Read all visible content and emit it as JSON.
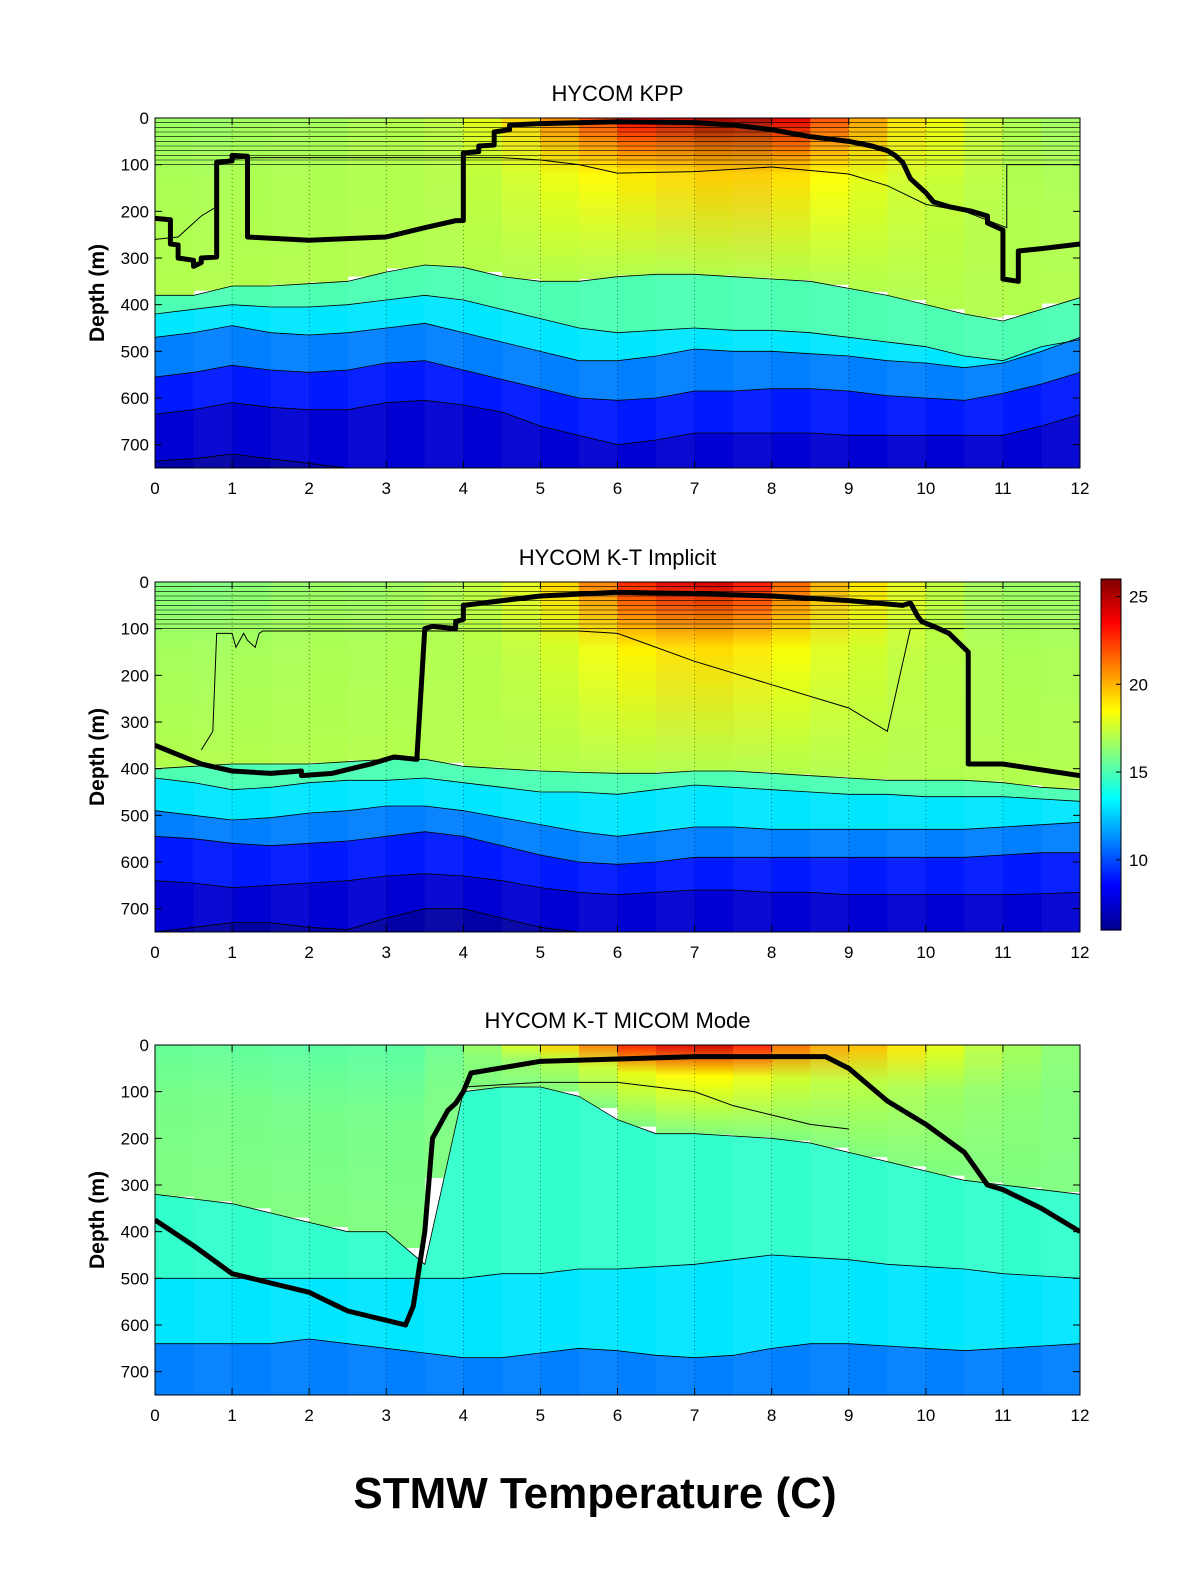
{
  "figure": {
    "xlabel": "STMW Temperature (C)"
  },
  "colorbar": {
    "ticks": [
      10,
      15,
      20,
      25
    ],
    "range": [
      6,
      26
    ],
    "colormap": [
      "#00008f",
      "#0000ff",
      "#0080ff",
      "#00ffff",
      "#80ff80",
      "#ffff00",
      "#ff8000",
      "#ff0000",
      "#800000"
    ]
  },
  "chart_data": [
    {
      "type": "heatmap",
      "title": "HYCOM KPP",
      "xlabel": "",
      "ylabel": "Depth (m)",
      "xlim": [
        0,
        12
      ],
      "ylim": [
        750,
        0
      ],
      "xticks": [
        0,
        1,
        2,
        3,
        4,
        5,
        6,
        7,
        8,
        9,
        10,
        11,
        12
      ],
      "yticks": [
        0,
        100,
        200,
        300,
        400,
        500,
        600,
        700
      ],
      "x": [
        0,
        0.5,
        1,
        1.5,
        2,
        2.5,
        3,
        3.5,
        4,
        4.5,
        5,
        5.5,
        6,
        6.5,
        7,
        7.5,
        8,
        8.5,
        9,
        9.5,
        10,
        10.5,
        11,
        11.5,
        12
      ],
      "surface_temp": [
        16.5,
        16.5,
        16.5,
        16.8,
        16.6,
        16.8,
        17,
        17,
        17.5,
        18.5,
        20,
        21.5,
        23,
        24,
        25,
        25.5,
        25,
        23,
        21,
        19.5,
        18.5,
        18,
        17,
        16.8,
        16.5
      ],
      "contours": [
        {
          "temp": 16,
          "depth": [
            380,
            380,
            360,
            360,
            355,
            350,
            330,
            315,
            320,
            340,
            350,
            350,
            340,
            335,
            335,
            340,
            345,
            350,
            365,
            380,
            400,
            420,
            435,
            410,
            385
          ]
        },
        {
          "temp": 14,
          "depth": [
            420,
            410,
            400,
            405,
            405,
            400,
            390,
            380,
            390,
            410,
            430,
            450,
            460,
            455,
            450,
            455,
            455,
            460,
            470,
            480,
            490,
            510,
            520,
            490,
            475
          ]
        },
        {
          "temp": 12,
          "depth": [
            470,
            460,
            445,
            460,
            465,
            460,
            450,
            440,
            460,
            480,
            500,
            520,
            520,
            510,
            495,
            500,
            500,
            505,
            510,
            520,
            525,
            535,
            525,
            500,
            470
          ]
        },
        {
          "temp": 10,
          "depth": [
            555,
            545,
            530,
            540,
            545,
            540,
            525,
            520,
            540,
            560,
            580,
            600,
            605,
            600,
            585,
            585,
            580,
            580,
            585,
            595,
            600,
            605,
            590,
            570,
            545
          ]
        },
        {
          "temp": 8,
          "depth": [
            635,
            625,
            610,
            620,
            625,
            625,
            610,
            605,
            615,
            630,
            660,
            680,
            700,
            690,
            675,
            675,
            675,
            675,
            680,
            680,
            680,
            680,
            680,
            660,
            635
          ]
        },
        {
          "temp": 7,
          "depth": [
            735,
            730,
            720,
            730,
            740,
            750,
            750,
            750,
            750,
            750,
            750,
            750,
            750,
            750,
            750,
            750,
            750,
            750,
            750,
            750,
            750,
            750,
            750,
            750,
            750
          ]
        }
      ],
      "thin_line": {
        "x": [
          0,
          0.3,
          0.6,
          0.8,
          0.8,
          1.0,
          1.3,
          2,
          3,
          4,
          4.5,
          5,
          5.5,
          6,
          7,
          8,
          9,
          9.5,
          10,
          10.5,
          11.05,
          11.05,
          12
        ],
        "depth": [
          260,
          255,
          210,
          190,
          90,
          88,
          85,
          85,
          85,
          85,
          85,
          90,
          100,
          118,
          115,
          105,
          120,
          145,
          185,
          200,
          235,
          100,
          100
        ]
      },
      "mixed_layer": {
        "x": [
          0,
          0.2,
          0.2,
          0.3,
          0.3,
          0.5,
          0.5,
          0.6,
          0.6,
          0.8,
          0.8,
          1.0,
          1.0,
          1.2,
          1.2,
          2,
          3,
          3.5,
          3.9,
          4.0,
          4.0,
          4.2,
          4.2,
          4.4,
          4.4,
          4.6,
          4.6,
          5,
          6,
          7,
          7.5,
          8,
          8.5,
          9,
          9.3,
          9.5,
          9.6,
          9.7,
          9.8,
          10.0,
          10.1,
          10.3,
          10.6,
          10.8,
          10.8,
          11.0,
          11.0,
          11.2,
          11.2,
          11.5,
          12
        ],
        "depth": [
          215,
          218,
          270,
          272,
          300,
          305,
          318,
          310,
          300,
          298,
          95,
          92,
          80,
          82,
          255,
          262,
          255,
          235,
          220,
          220,
          75,
          72,
          60,
          58,
          30,
          25,
          15,
          12,
          8,
          10,
          15,
          25,
          40,
          50,
          60,
          70,
          80,
          95,
          130,
          160,
          180,
          190,
          200,
          210,
          225,
          240,
          345,
          350,
          285,
          280,
          270
        ]
      }
    },
    {
      "type": "heatmap",
      "title": "HYCOM K-T Implicit",
      "xlabel": "",
      "ylabel": "Depth (m)",
      "xlim": [
        0,
        12
      ],
      "ylim": [
        750,
        0
      ],
      "xticks": [
        0,
        1,
        2,
        3,
        4,
        5,
        6,
        7,
        8,
        9,
        10,
        11,
        12
      ],
      "yticks": [
        0,
        100,
        200,
        300,
        400,
        500,
        600,
        700
      ],
      "x": [
        0,
        0.5,
        1,
        1.5,
        2,
        2.5,
        3,
        3.5,
        4,
        4.5,
        5,
        5.5,
        6,
        6.5,
        7,
        7.5,
        8,
        8.5,
        9,
        9.5,
        10,
        10.5,
        11,
        11.5,
        12
      ],
      "surface_temp": [
        16,
        16,
        16,
        16.3,
        16.5,
        16.5,
        16.5,
        16.8,
        17,
        17.5,
        18.5,
        20,
        22,
        23.5,
        24.5,
        24,
        22.5,
        20.5,
        19.5,
        18.5,
        17.5,
        17,
        16.5,
        16.5,
        16.5
      ],
      "contours": [
        {
          "temp": 16,
          "depth": [
            400,
            395,
            390,
            390,
            390,
            385,
            380,
            380,
            395,
            400,
            405,
            408,
            410,
            410,
            405,
            405,
            410,
            415,
            420,
            425,
            425,
            425,
            430,
            440,
            445
          ]
        },
        {
          "temp": 14,
          "depth": [
            420,
            430,
            445,
            440,
            430,
            425,
            425,
            420,
            430,
            440,
            450,
            450,
            455,
            445,
            435,
            440,
            445,
            450,
            455,
            455,
            460,
            460,
            460,
            465,
            470
          ]
        },
        {
          "temp": 12,
          "depth": [
            490,
            500,
            510,
            505,
            495,
            490,
            480,
            480,
            490,
            505,
            520,
            535,
            545,
            535,
            525,
            525,
            530,
            530,
            530,
            530,
            530,
            530,
            525,
            520,
            515
          ]
        },
        {
          "temp": 10,
          "depth": [
            545,
            550,
            560,
            565,
            560,
            555,
            545,
            535,
            545,
            565,
            585,
            600,
            605,
            600,
            590,
            590,
            590,
            590,
            590,
            590,
            590,
            590,
            585,
            580,
            580
          ]
        },
        {
          "temp": 8,
          "depth": [
            640,
            645,
            655,
            650,
            645,
            640,
            630,
            625,
            630,
            640,
            655,
            665,
            670,
            665,
            660,
            660,
            665,
            665,
            670,
            670,
            670,
            670,
            670,
            668,
            665
          ]
        },
        {
          "temp": 7,
          "depth": [
            750,
            740,
            730,
            730,
            740,
            745,
            720,
            700,
            700,
            720,
            740,
            750,
            750,
            750,
            750,
            750,
            750,
            750,
            750,
            750,
            750,
            750,
            750,
            750,
            750
          ]
        }
      ],
      "thin_line": {
        "x": [
          0.6,
          0.75,
          0.8,
          1.0,
          1.05,
          1.15,
          1.2,
          1.3,
          1.35,
          1.4,
          2,
          3,
          4,
          5,
          5.5,
          6,
          7,
          8,
          9,
          9.5,
          9.8,
          10.5
        ],
        "depth": [
          360,
          320,
          110,
          110,
          140,
          110,
          125,
          140,
          110,
          105,
          105,
          105,
          105,
          105,
          105,
          110,
          170,
          220,
          270,
          320,
          100,
          100
        ]
      },
      "mixed_layer": {
        "x": [
          0,
          0.3,
          0.6,
          1,
          1.5,
          1.9,
          1.9,
          2.3,
          2.8,
          3.1,
          3.4,
          3.4,
          3.5,
          3.6,
          3.9,
          3.9,
          4.0,
          4.0,
          5,
          6,
          7,
          8,
          9,
          9.7,
          9.8,
          9.9,
          9.95,
          10.1,
          10.3,
          10.55,
          10.55,
          11,
          12
        ],
        "depth": [
          350,
          370,
          390,
          405,
          410,
          405,
          415,
          410,
          390,
          375,
          380,
          370,
          100,
          95,
          100,
          85,
          80,
          50,
          30,
          22,
          25,
          30,
          40,
          50,
          45,
          75,
          85,
          95,
          110,
          150,
          390,
          390,
          415
        ]
      }
    },
    {
      "type": "heatmap",
      "title": "HYCOM K-T MICOM Mode",
      "xlabel": "",
      "ylabel": "Depth (m)",
      "xlim": [
        0,
        12
      ],
      "ylim": [
        750,
        0
      ],
      "xticks": [
        0,
        1,
        2,
        3,
        4,
        5,
        6,
        7,
        8,
        9,
        10,
        11,
        12
      ],
      "yticks": [
        0,
        100,
        200,
        300,
        400,
        500,
        600,
        700
      ],
      "x": [
        0,
        0.5,
        1,
        1.5,
        2,
        2.5,
        3,
        3.5,
        4,
        4.5,
        5,
        5.5,
        6,
        6.5,
        7,
        7.5,
        8,
        8.5,
        9,
        9.5,
        10,
        10.5,
        11,
        11.5,
        12
      ],
      "surface_temp": [
        15.5,
        15.5,
        15.5,
        15.3,
        15.3,
        15.3,
        15.3,
        15.3,
        16,
        17,
        18.5,
        20,
        22,
        23.5,
        24.5,
        24,
        22,
        20.5,
        20,
        19.5,
        18.5,
        17.5,
        17,
        16.5,
        16
      ],
      "contours": [
        {
          "temp": 15,
          "depth": [
            320,
            330,
            340,
            360,
            380,
            400,
            400,
            470,
            100,
            90,
            90,
            110,
            160,
            190,
            190,
            195,
            200,
            210,
            230,
            250,
            270,
            290,
            300,
            310,
            320
          ]
        },
        {
          "temp": 14,
          "depth": [
            500,
            500,
            500,
            500,
            500,
            500,
            500,
            500,
            500,
            490,
            490,
            480,
            480,
            475,
            470,
            460,
            450,
            455,
            460,
            470,
            475,
            480,
            490,
            495,
            500
          ]
        },
        {
          "temp": 12,
          "depth": [
            640,
            640,
            640,
            640,
            630,
            640,
            650,
            660,
            670,
            670,
            660,
            650,
            655,
            665,
            670,
            665,
            650,
            640,
            640,
            645,
            650,
            655,
            650,
            645,
            640
          ]
        },
        {
          "temp": 10,
          "depth": [
            750,
            750,
            750,
            750,
            750,
            750,
            750,
            750,
            750,
            750,
            750,
            750,
            750,
            750,
            750,
            750,
            750,
            750,
            750,
            750,
            750,
            750,
            750,
            750,
            750
          ]
        }
      ],
      "thin_line": {
        "x": [
          4,
          5,
          6,
          7,
          7.5,
          8,
          8.5,
          9
        ],
        "depth": [
          90,
          80,
          80,
          100,
          130,
          150,
          170,
          180
        ]
      },
      "mixed_layer": {
        "x": [
          0,
          0.5,
          1,
          1.5,
          2,
          2.5,
          3,
          3.25,
          3.35,
          3.5,
          3.6,
          3.8,
          3.9,
          4.0,
          4.1,
          5,
          6,
          7,
          8,
          8.7,
          9,
          9.5,
          10,
          10.5,
          10.8,
          11,
          11.5,
          12
        ],
        "depth": [
          375,
          430,
          490,
          510,
          530,
          570,
          590,
          600,
          560,
          400,
          200,
          140,
          125,
          100,
          60,
          35,
          30,
          25,
          25,
          25,
          50,
          120,
          170,
          230,
          300,
          310,
          350,
          400
        ]
      }
    }
  ]
}
